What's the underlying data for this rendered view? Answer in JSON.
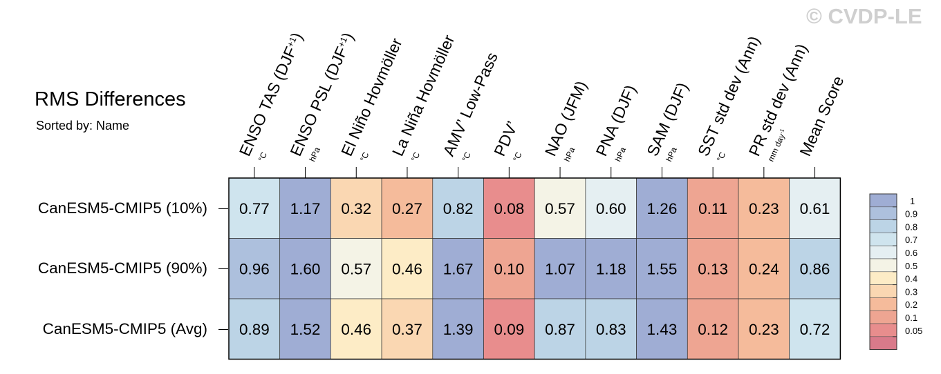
{
  "title": "RMS Differences",
  "subtitle": "Sorted by: Name",
  "watermark": "© CVDP-LE",
  "chart_data": {
    "type": "heatmap",
    "columns": [
      {
        "label": "ENSO TAS (DJF",
        "sup": "+1",
        "close": ")",
        "units": "°C"
      },
      {
        "label": "ENSO PSL (DJF",
        "sup": "+1",
        "close": ")",
        "units": "hPa"
      },
      {
        "label": "El Niño Hovmöller",
        "sup": "",
        "close": "",
        "units": "°C"
      },
      {
        "label": "La Niña Hovmöller",
        "sup": "",
        "close": "",
        "units": "°C"
      },
      {
        "label": "AMV’ Low-Pass",
        "sup": "",
        "close": "",
        "units": "°C"
      },
      {
        "label": "PDV’",
        "sup": "",
        "close": "",
        "units": "°C"
      },
      {
        "label": "NAO (JFM)",
        "sup": "",
        "close": "",
        "units": "hPa"
      },
      {
        "label": "PNA (DJF)",
        "sup": "",
        "close": "",
        "units": "hPa"
      },
      {
        "label": "SAM (DJF)",
        "sup": "",
        "close": "",
        "units": "hPa"
      },
      {
        "label": "SST std dev (Ann)",
        "sup": "",
        "close": "",
        "units": "°C"
      },
      {
        "label": "PR std dev (Ann)",
        "sup": "",
        "close": "",
        "units": "mm day",
        "units_sup": "-1"
      },
      {
        "label": "Mean Score",
        "sup": "",
        "close": "",
        "units": ""
      }
    ],
    "rows": [
      "CanESM5-CMIP5 (10%)",
      "CanESM5-CMIP5 (90%)",
      "CanESM5-CMIP5 (Avg)"
    ],
    "values": [
      [
        0.77,
        1.17,
        0.32,
        0.27,
        0.82,
        0.08,
        0.57,
        0.6,
        1.26,
        0.11,
        0.23,
        0.61
      ],
      [
        0.96,
        1.6,
        0.57,
        0.46,
        1.67,
        0.1,
        1.07,
        1.18,
        1.55,
        0.13,
        0.24,
        0.86
      ],
      [
        0.89,
        1.52,
        0.46,
        0.37,
        1.39,
        0.09,
        0.87,
        0.83,
        1.43,
        0.12,
        0.23,
        0.72
      ]
    ],
    "legend": {
      "levels": [
        "1",
        "0.9",
        "0.8",
        "0.7",
        "0.6",
        "0.5",
        "0.4",
        "0.3",
        "0.2",
        "0.1",
        "0.05"
      ],
      "thresholds": [
        1,
        0.9,
        0.8,
        0.7,
        0.6,
        0.5,
        0.4,
        0.3,
        0.2,
        0.1,
        0.05
      ],
      "colors": [
        "#9fadd4",
        "#adc0dd",
        "#bcd4e6",
        "#cfe4ee",
        "#e5eff2",
        "#f4f3e6",
        "#fdecc6",
        "#fad7b2",
        "#f5bb9b",
        "#eea592",
        "#e88d8d",
        "#d97a8a"
      ],
      "placement": "right"
    }
  }
}
